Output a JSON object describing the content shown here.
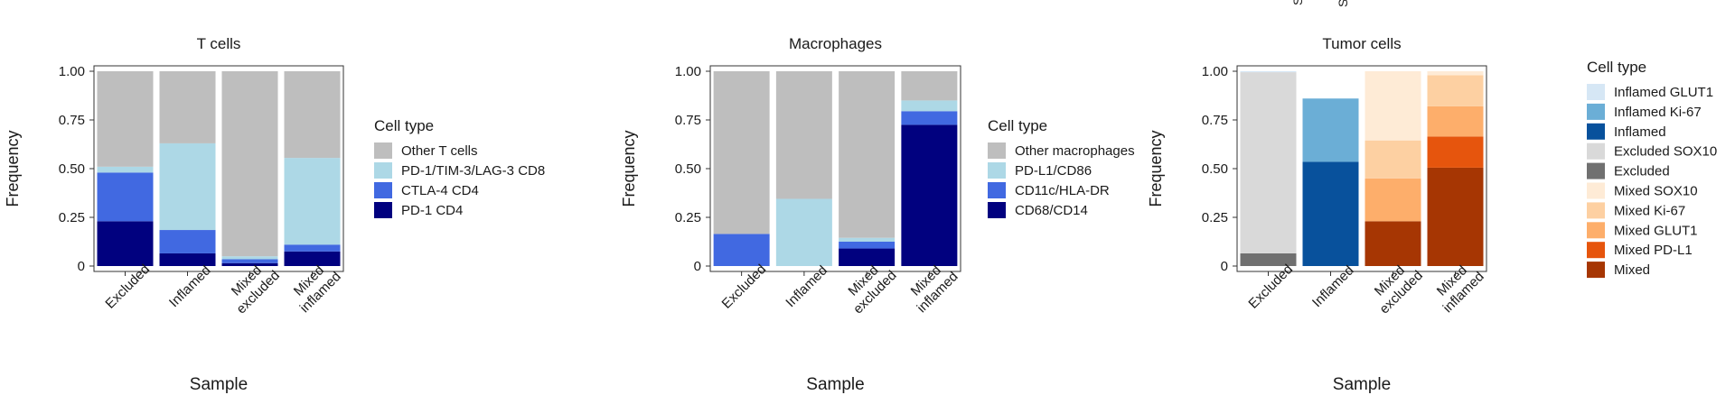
{
  "chart_data": [
    {
      "type": "stacked-bar",
      "title": "T cells",
      "xlabel": "Sample",
      "ylabel": "Frequency",
      "ylim": [
        0,
        1
      ],
      "yticks": [
        "0",
        "0.25",
        "0.50",
        "0.75",
        "1.00"
      ],
      "categories": [
        [
          "Excluded"
        ],
        [
          "Inflamed"
        ],
        [
          "Mixed",
          "excluded"
        ],
        [
          "Mixed",
          "inflamed"
        ]
      ],
      "legend_title": "Cell type",
      "legend_placement": "right",
      "series": [
        {
          "name": "PD-1 CD4",
          "color": "#01017f",
          "values": [
            0.23,
            0.065,
            0.015,
            0.075
          ]
        },
        {
          "name": "CTLA-4 CD4",
          "color": "#4169e1",
          "values": [
            0.25,
            0.12,
            0.02,
            0.035
          ]
        },
        {
          "name": "PD-1/TIM-3/LAG-3 CD8",
          "color": "#add8e6",
          "values": [
            0.03,
            0.445,
            0.015,
            0.445
          ]
        },
        {
          "name": "Other T cells",
          "color": "#bebebe",
          "values": [
            0.49,
            0.37,
            0.95,
            0.445
          ]
        }
      ]
    },
    {
      "type": "stacked-bar",
      "title": "Macrophages",
      "xlabel": "Sample",
      "ylabel": "Frequency",
      "ylim": [
        0,
        1
      ],
      "yticks": [
        "0",
        "0.25",
        "0.50",
        "0.75",
        "1.00"
      ],
      "categories": [
        [
          "Excluded"
        ],
        [
          "Inflamed"
        ],
        [
          "Mixed",
          "excluded"
        ],
        [
          "Mixed",
          "inflamed"
        ]
      ],
      "legend_title": "Cell type",
      "legend_placement": "right",
      "series": [
        {
          "name": "CD68/CD14",
          "color": "#01017f",
          "values": [
            0.0,
            0.0,
            0.09,
            0.725
          ]
        },
        {
          "name": "CD11c/HLA-DR",
          "color": "#4169e1",
          "values": [
            0.165,
            0.0,
            0.035,
            0.07
          ]
        },
        {
          "name": "PD-L1/CD86",
          "color": "#add8e6",
          "values": [
            0.0,
            0.345,
            0.02,
            0.055
          ]
        },
        {
          "name": "Other macrophages",
          "color": "#bebebe",
          "values": [
            0.835,
            0.655,
            0.855,
            0.15
          ]
        }
      ]
    },
    {
      "type": "stacked-bar",
      "title": "Tumor cells",
      "xlabel": "Sample",
      "ylabel": "Frequency",
      "ylim": [
        0,
        1
      ],
      "yticks": [
        "0",
        "0.25",
        "0.50",
        "0.75",
        "1.00"
      ],
      "categories": [
        [
          "Excluded"
        ],
        [
          "Inflamed"
        ],
        [
          "Mixed",
          "excluded"
        ],
        [
          "Mixed",
          "inflamed"
        ]
      ],
      "legend_title": "Cell type",
      "legend_placement": "right",
      "series": [
        {
          "name": "Excluded",
          "color": "#707070",
          "values": [
            0.065,
            0,
            0,
            0
          ]
        },
        {
          "name": "Excluded SOX10",
          "color": "#d9d9d9",
          "values": [
            0.93,
            0,
            0,
            0
          ]
        },
        {
          "name": "Inflamed GLUT1",
          "color": "#d6e7f5",
          "values": [
            0.005,
            0,
            0,
            0
          ]
        },
        {
          "name": "Inflamed",
          "color": "#08519c",
          "values": [
            0,
            0.535,
            0,
            0
          ]
        },
        {
          "name": "Inflamed Ki-67",
          "color": "#6baed6",
          "values": [
            0,
            0.325,
            0,
            0
          ]
        },
        {
          "name": "Mixed",
          "color": "#a63603",
          "values": [
            0,
            0,
            0.23,
            0.505
          ]
        },
        {
          "name": "Mixed PD-L1",
          "color": "#e6550d",
          "values": [
            0,
            0,
            0,
            0.16
          ]
        },
        {
          "name": "Mixed GLUT1",
          "color": "#fdae6b",
          "values": [
            0,
            0,
            0.22,
            0.155
          ]
        },
        {
          "name": "Mixed Ki-67",
          "color": "#fdd0a2",
          "values": [
            0,
            0,
            0.195,
            0.16
          ]
        },
        {
          "name": "Mixed SOX10",
          "color": "#feebd6",
          "values": [
            0,
            0,
            0.355,
            0.02
          ]
        }
      ],
      "legend_order": [
        "Inflamed GLUT1",
        "Inflamed Ki-67",
        "Inflamed",
        "Excluded SOX10",
        "Excluded",
        "Mixed SOX10",
        "Mixed Ki-67",
        "Mixed GLUT1",
        "Mixed PD-L1",
        "Mixed"
      ]
    }
  ],
  "top_crop_glyphs": [
    "Se",
    "SC",
    "y"
  ]
}
